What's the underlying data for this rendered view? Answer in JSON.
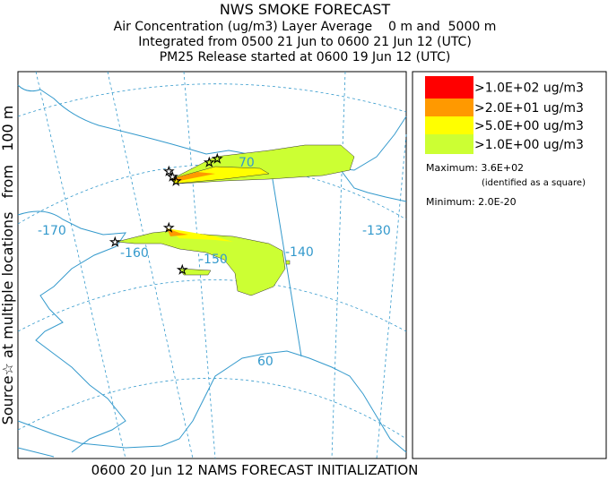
{
  "header": {
    "title": "NWS SMOKE FORECAST",
    "lines": [
      "Air Concentration (ug/m3) Layer Average    0 m and  5000 m",
      "Integrated from 0500 21 Jun to 0600 21 Jun 12 (UTC)",
      "PM25 Release started at 0600 19 Jun 12 (UTC)"
    ]
  },
  "map": {
    "source_label": "Source☆ at multiple locations   from   100 m",
    "longitude_labels": [
      "-170",
      "-160",
      "-150",
      "-140",
      "-130"
    ],
    "latitude_labels": [
      "70",
      "60"
    ]
  },
  "legend": {
    "levels": [
      {
        "label": ">1.0E+02 ug/m3",
        "color": "#ff0000"
      },
      {
        "label": ">2.0E+01 ug/m3",
        "color": "#ff9900"
      },
      {
        "label": ">5.0E+00 ug/m3",
        "color": "#ffff00"
      },
      {
        "label": ">1.0E+00 ug/m3",
        "color": "#ccff33"
      }
    ],
    "maximum": "Maximum: 3.6E+02",
    "max_note": "(identified as a square)",
    "minimum": "Minimum: 2.0E-20"
  },
  "footer": "0600 20 Jun 12 NAMS FORECAST INITIALIZATION"
}
